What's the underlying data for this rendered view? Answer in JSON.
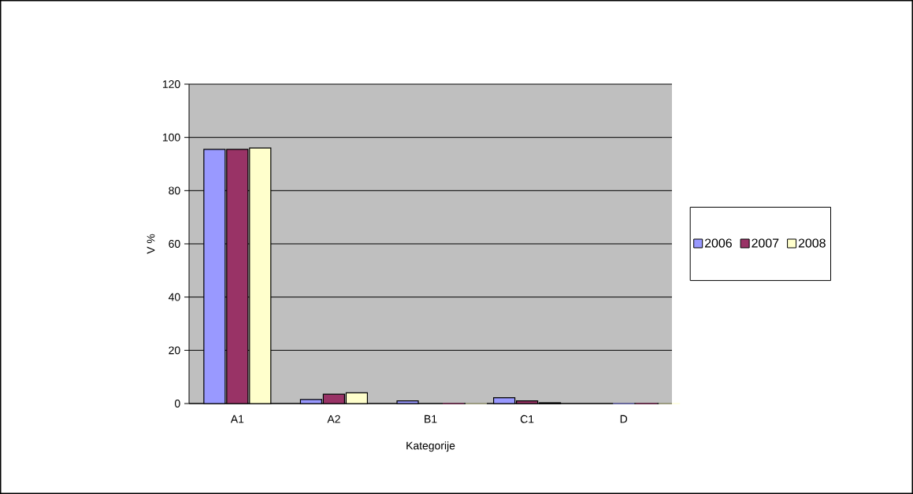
{
  "chart_data": {
    "type": "bar",
    "xlabel": "Kategorije",
    "ylabel": "V %",
    "categories": [
      "A1",
      "A2",
      "B1",
      "C1",
      "D"
    ],
    "series": [
      {
        "name": "2006",
        "color": "#9999ff",
        "values": [
          95.5,
          1.5,
          1,
          2.2,
          0
        ]
      },
      {
        "name": "2007",
        "color": "#993366",
        "values": [
          95.5,
          3.5,
          0,
          1,
          0
        ]
      },
      {
        "name": "2008",
        "color": "#ffffcc",
        "values": [
          96,
          4,
          0,
          0.3,
          0
        ]
      }
    ],
    "ylim": [
      0,
      120
    ],
    "yticks": [
      0,
      20,
      40,
      60,
      80,
      100,
      120
    ],
    "grid": "y",
    "legend": "right"
  }
}
